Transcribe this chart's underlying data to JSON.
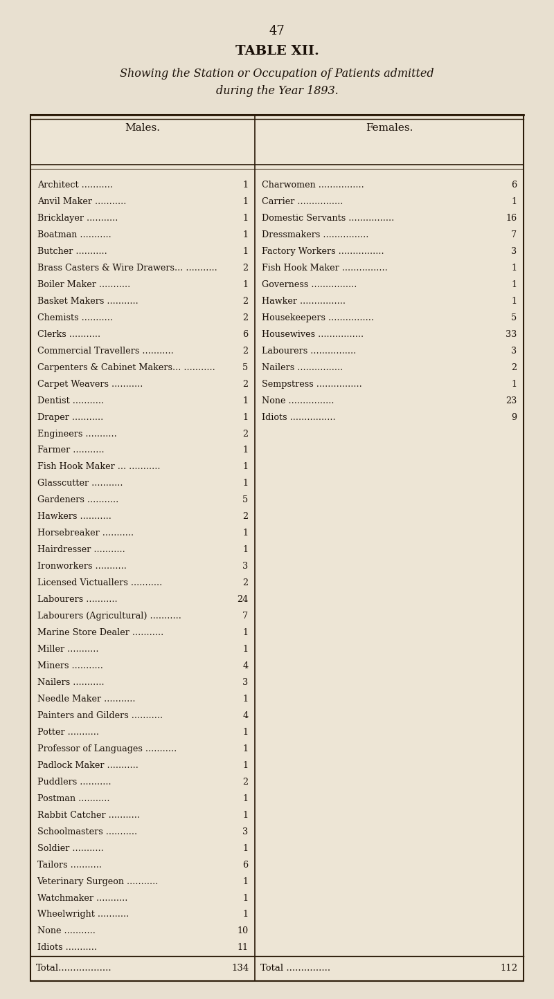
{
  "page_number": "47",
  "title": "TABLE XII.",
  "subtitle": "Showing the Station or Occupation of Patients admitted\nduring the Year 1893.",
  "col_headers": [
    "Males.",
    "Females."
  ],
  "males": [
    [
      "Architect",
      "1"
    ],
    [
      "Anvil Maker",
      "1"
    ],
    [
      "Bricklayer",
      "1"
    ],
    [
      "Boatman",
      "1"
    ],
    [
      "Butcher",
      "1"
    ],
    [
      "Brass Casters & Wire Drawers...",
      "2"
    ],
    [
      "Boiler Maker",
      "1"
    ],
    [
      "Basket Makers",
      "2"
    ],
    [
      "Chemists",
      "2"
    ],
    [
      "Clerks",
      "6"
    ],
    [
      "Commercial Travellers",
      "2"
    ],
    [
      "Carpenters & Cabinet Makers...",
      "5"
    ],
    [
      "Carpet Weavers",
      "2"
    ],
    [
      "Dentist",
      "1"
    ],
    [
      "Draper",
      "1"
    ],
    [
      "Engineers",
      "2"
    ],
    [
      "Farmer",
      "1"
    ],
    [
      "Fish Hook Maker ...",
      "1"
    ],
    [
      "Glasscutter",
      "1"
    ],
    [
      "Gardeners",
      "5"
    ],
    [
      "Hawkers",
      "2"
    ],
    [
      "Horsebreaker",
      "1"
    ],
    [
      "Hairdresser",
      "1"
    ],
    [
      "Ironworkers",
      "3"
    ],
    [
      "Licensed Victuallers",
      "2"
    ],
    [
      "Labourers",
      "24"
    ],
    [
      "Labourers (Agricultural)",
      "7"
    ],
    [
      "Marine Store Dealer",
      "1"
    ],
    [
      "Miller",
      "1"
    ],
    [
      "Miners",
      "4"
    ],
    [
      "Nailers",
      "3"
    ],
    [
      "Needle Maker",
      "1"
    ],
    [
      "Painters and Gilders",
      "4"
    ],
    [
      "Potter",
      "1"
    ],
    [
      "Professor of Languages",
      "1"
    ],
    [
      "Padlock Maker",
      "1"
    ],
    [
      "Puddlers",
      "2"
    ],
    [
      "Postman",
      "1"
    ],
    [
      "Rabbit Catcher",
      "1"
    ],
    [
      "Schoolmasters",
      "3"
    ],
    [
      "Soldier",
      "1"
    ],
    [
      "Tailors",
      "6"
    ],
    [
      "Veterinary Surgeon",
      "1"
    ],
    [
      "Watchmaker",
      "1"
    ],
    [
      "Wheelwright",
      "1"
    ],
    [
      "None",
      "10"
    ],
    [
      "Idiots",
      "11"
    ]
  ],
  "females": [
    [
      "Charwomen",
      "6"
    ],
    [
      "Carrier",
      "1"
    ],
    [
      "Domestic Servants",
      "16"
    ],
    [
      "Dressmakers",
      "7"
    ],
    [
      "Factory Workers",
      "3"
    ],
    [
      "Fish Hook Maker",
      "1"
    ],
    [
      "Governess",
      "1"
    ],
    [
      "Hawker",
      "1"
    ],
    [
      "Housekeepers",
      "5"
    ],
    [
      "Housewives",
      "33"
    ],
    [
      "Labourers",
      "3"
    ],
    [
      "Nailers",
      "2"
    ],
    [
      "Sempstress",
      "1"
    ],
    [
      "None",
      "23"
    ],
    [
      "Idiots",
      "9"
    ]
  ],
  "male_total": "134",
  "female_total": "112",
  "bg_color": "#e8e0d0",
  "text_color": "#1a1008",
  "table_bg": "#ede5d5",
  "border_color": "#2a1a08"
}
